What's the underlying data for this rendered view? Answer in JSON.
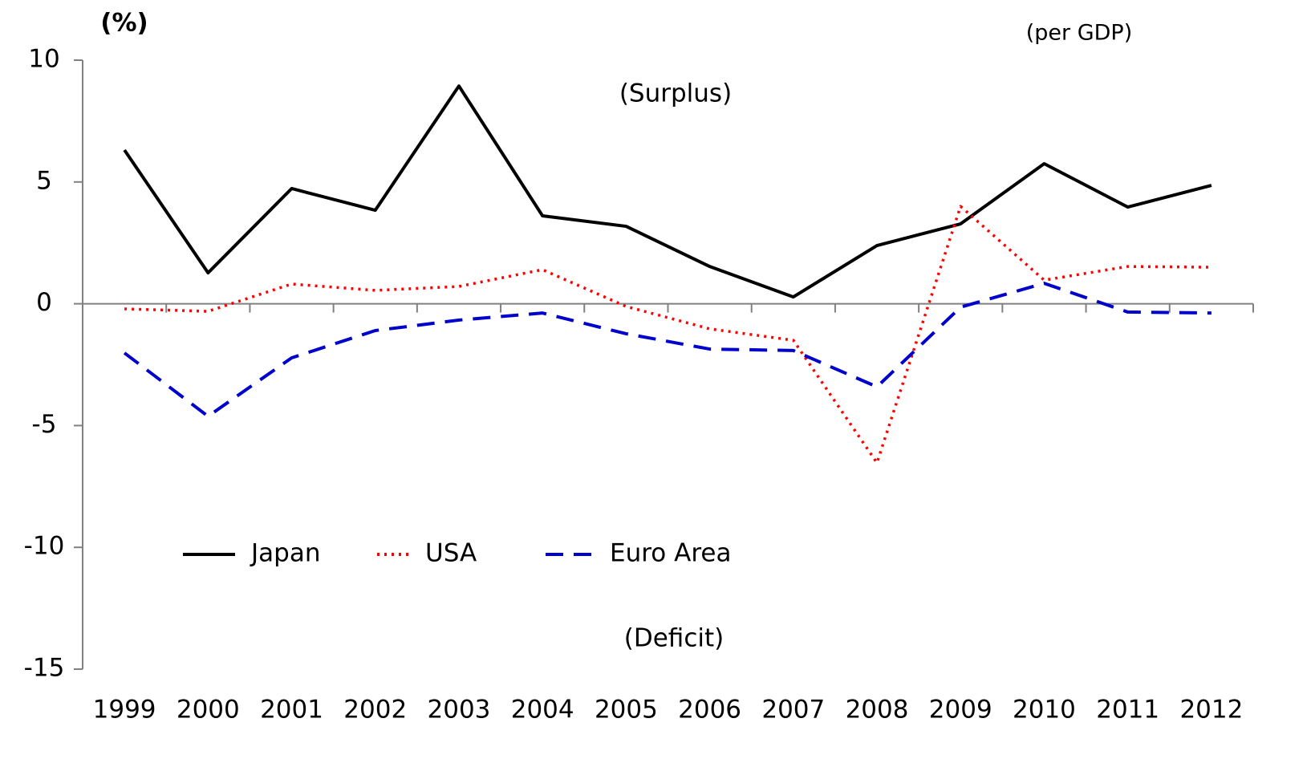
{
  "chart_data": {
    "type": "line",
    "y_label": "(%)",
    "annotations": [
      "(per GDP)",
      "(Surplus)",
      "(Deficit)"
    ],
    "categories": [
      "1999",
      "2000",
      "2001",
      "2002",
      "2003",
      "2004",
      "2005",
      "2006",
      "2007",
      "2008",
      "2009",
      "2010",
      "2011",
      "2012"
    ],
    "series": [
      {
        "name": "Japan",
        "color": "#000000",
        "dash": "solid",
        "values": [
          6.31,
          1.27,
          4.73,
          3.84,
          8.94,
          3.61,
          3.18,
          1.53,
          0.28,
          2.39,
          3.28,
          5.75,
          3.97,
          4.86
        ]
      },
      {
        "name": "USA",
        "color": "#ff0000",
        "dash": "dotted",
        "values": [
          -0.21,
          -0.31,
          0.81,
          0.55,
          0.71,
          1.4,
          -0.11,
          -1.03,
          -1.5,
          -6.53,
          4.0,
          0.97,
          1.53,
          1.5
        ]
      },
      {
        "name": "Euro Area",
        "color": "#0000cc",
        "dash": "dashed",
        "values": [
          -2.02,
          -4.62,
          -2.22,
          -1.1,
          -0.67,
          -0.38,
          -1.23,
          -1.86,
          -1.92,
          -3.41,
          -0.14,
          0.84,
          -0.34,
          -0.38
        ]
      }
    ],
    "ylim": [
      -15,
      10
    ],
    "yticks": [
      -15,
      -10,
      -5,
      0,
      5,
      10
    ],
    "legend": "lower left"
  }
}
